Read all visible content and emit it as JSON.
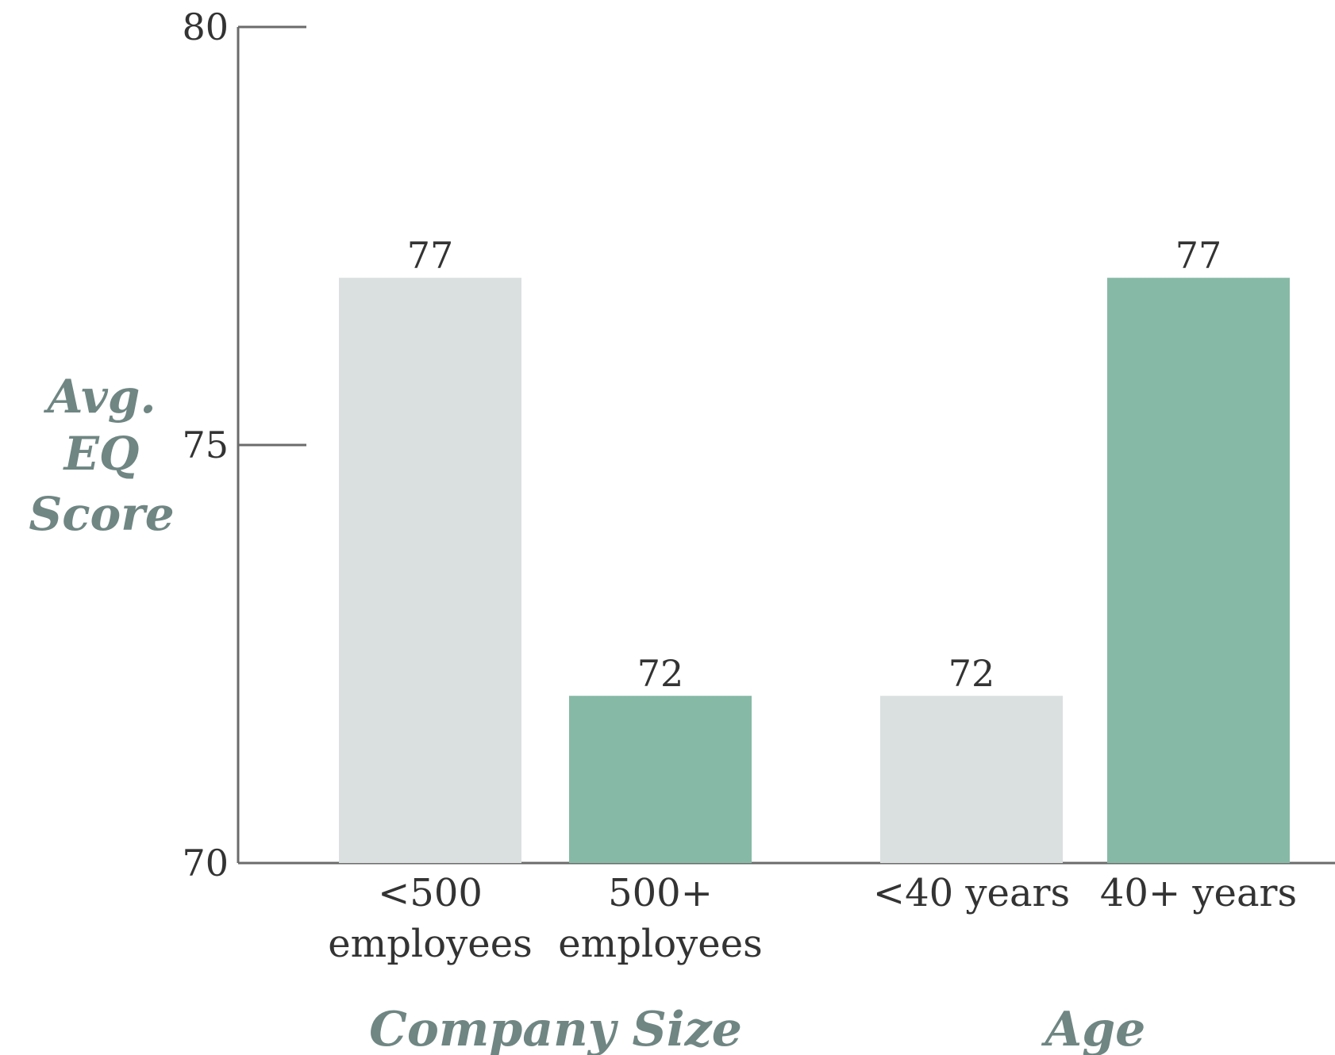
{
  "chart_data": {
    "type": "bar",
    "ylabel_lines": [
      "Avg.",
      "EQ",
      "Score"
    ],
    "ylim": [
      70,
      80
    ],
    "yticks": [
      70,
      75,
      80
    ],
    "grid": false,
    "groups": [
      {
        "label": "Company Size",
        "bars": [
          {
            "label_lines": [
              "<500",
              "employees"
            ],
            "value": 77,
            "color": "#dadfe0"
          },
          {
            "label_lines": [
              "500+",
              "employees"
            ],
            "value": 72,
            "color": "#87b9a7"
          }
        ]
      },
      {
        "label": "Age",
        "bars": [
          {
            "label_lines": [
              "<40 years"
            ],
            "value": 72,
            "color": "#dadfe0"
          },
          {
            "label_lines": [
              "40+ years"
            ],
            "value": 77,
            "color": "#87b9a7"
          }
        ]
      }
    ]
  }
}
